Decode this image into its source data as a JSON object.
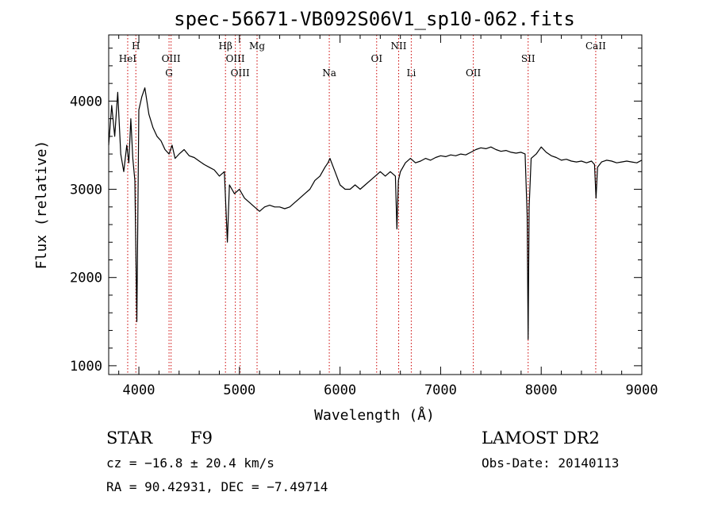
{
  "chart_data": {
    "type": "line",
    "title": "spec-56671-VB092S06V1_sp10-062.fits",
    "xlabel": "Wavelength (Å)",
    "ylabel": "Flux (relative)",
    "xlim": [
      3700,
      9000
    ],
    "ylim": [
      900,
      4750
    ],
    "xticks": [
      4000,
      5000,
      6000,
      7000,
      8000,
      9000
    ],
    "yticks": [
      1000,
      2000,
      3000,
      4000
    ],
    "line_color": "#000000",
    "marker_color": "#cc0000",
    "lines": [
      {
        "label": "HeI",
        "x": 3889,
        "row": 2
      },
      {
        "label": "H",
        "x": 3970,
        "row": 1
      },
      {
        "label": "OIII",
        "x": 4320,
        "row": 2
      },
      {
        "label": "G",
        "x": 4300,
        "row": 3
      },
      {
        "label": "Hβ",
        "x": 4861,
        "row": 1
      },
      {
        "label": "OIII",
        "x": 4959,
        "row": 2
      },
      {
        "label": "OIII",
        "x": 5007,
        "row": 3
      },
      {
        "label": "Mg",
        "x": 5175,
        "row": 1
      },
      {
        "label": "Na",
        "x": 5893,
        "row": 3
      },
      {
        "label": "OI",
        "x": 6364,
        "row": 2
      },
      {
        "label": "NII",
        "x": 6583,
        "row": 1
      },
      {
        "label": "Li",
        "x": 6708,
        "row": 3
      },
      {
        "label": "OII",
        "x": 7325,
        "row": 3
      },
      {
        "label": "SII",
        "x": 7870,
        "row": 2
      },
      {
        "label": "CaII",
        "x": 8542,
        "row": 1
      }
    ],
    "x": [
      3700,
      3730,
      3760,
      3790,
      3820,
      3850,
      3880,
      3900,
      3920,
      3940,
      3960,
      3980,
      4000,
      4030,
      4060,
      4100,
      4140,
      4180,
      4220,
      4260,
      4300,
      4330,
      4360,
      4400,
      4450,
      4500,
      4550,
      4600,
      4650,
      4700,
      4750,
      4800,
      4850,
      4880,
      4900,
      4950,
      5000,
      5050,
      5100,
      5150,
      5200,
      5250,
      5300,
      5350,
      5400,
      5450,
      5500,
      5550,
      5600,
      5650,
      5700,
      5750,
      5800,
      5850,
      5880,
      5900,
      5950,
      6000,
      6050,
      6100,
      6150,
      6200,
      6250,
      6300,
      6350,
      6400,
      6450,
      6500,
      6550,
      6565,
      6580,
      6600,
      6650,
      6700,
      6750,
      6800,
      6850,
      6900,
      6950,
      7000,
      7050,
      7100,
      7150,
      7200,
      7250,
      7300,
      7350,
      7400,
      7450,
      7500,
      7550,
      7600,
      7650,
      7700,
      7750,
      7800,
      7840,
      7860,
      7870,
      7880,
      7900,
      7950,
      8000,
      8050,
      8100,
      8150,
      8200,
      8250,
      8300,
      8350,
      8400,
      8450,
      8500,
      8530,
      8545,
      8560,
      8600,
      8650,
      8700,
      8750,
      8800,
      8850,
      8900,
      8950,
      9000
    ],
    "y": [
      3500,
      3950,
      3600,
      4100,
      3400,
      3200,
      3500,
      3300,
      3800,
      3350,
      3100,
      1500,
      3900,
      4050,
      4150,
      3850,
      3700,
      3600,
      3550,
      3450,
      3400,
      3500,
      3350,
      3400,
      3450,
      3380,
      3360,
      3320,
      3280,
      3250,
      3220,
      3150,
      3200,
      2400,
      3050,
      2950,
      3000,
      2900,
      2850,
      2800,
      2750,
      2800,
      2820,
      2800,
      2800,
      2780,
      2800,
      2850,
      2900,
      2950,
      3000,
      3100,
      3150,
      3250,
      3300,
      3350,
      3200,
      3050,
      3000,
      3000,
      3050,
      3000,
      3050,
      3100,
      3150,
      3200,
      3150,
      3200,
      3150,
      2550,
      3100,
      3200,
      3300,
      3350,
      3300,
      3320,
      3350,
      3330,
      3360,
      3380,
      3370,
      3390,
      3380,
      3400,
      3390,
      3420,
      3450,
      3470,
      3460,
      3480,
      3450,
      3430,
      3440,
      3420,
      3410,
      3420,
      3400,
      2700,
      1300,
      2800,
      3350,
      3400,
      3480,
      3420,
      3380,
      3360,
      3330,
      3340,
      3320,
      3310,
      3320,
      3300,
      3320,
      3280,
      2900,
      3250,
      3310,
      3330,
      3320,
      3300,
      3310,
      3320,
      3310,
      3300,
      3330
    ]
  },
  "info": {
    "object_class": "STAR",
    "subclass": "F9",
    "survey": "LAMOST DR2",
    "cz": "cz = −16.8 ± 20.4 km/s",
    "obs_date": "Obs-Date: 20140113",
    "radec": "RA =  90.42931, DEC =  −7.49714"
  }
}
